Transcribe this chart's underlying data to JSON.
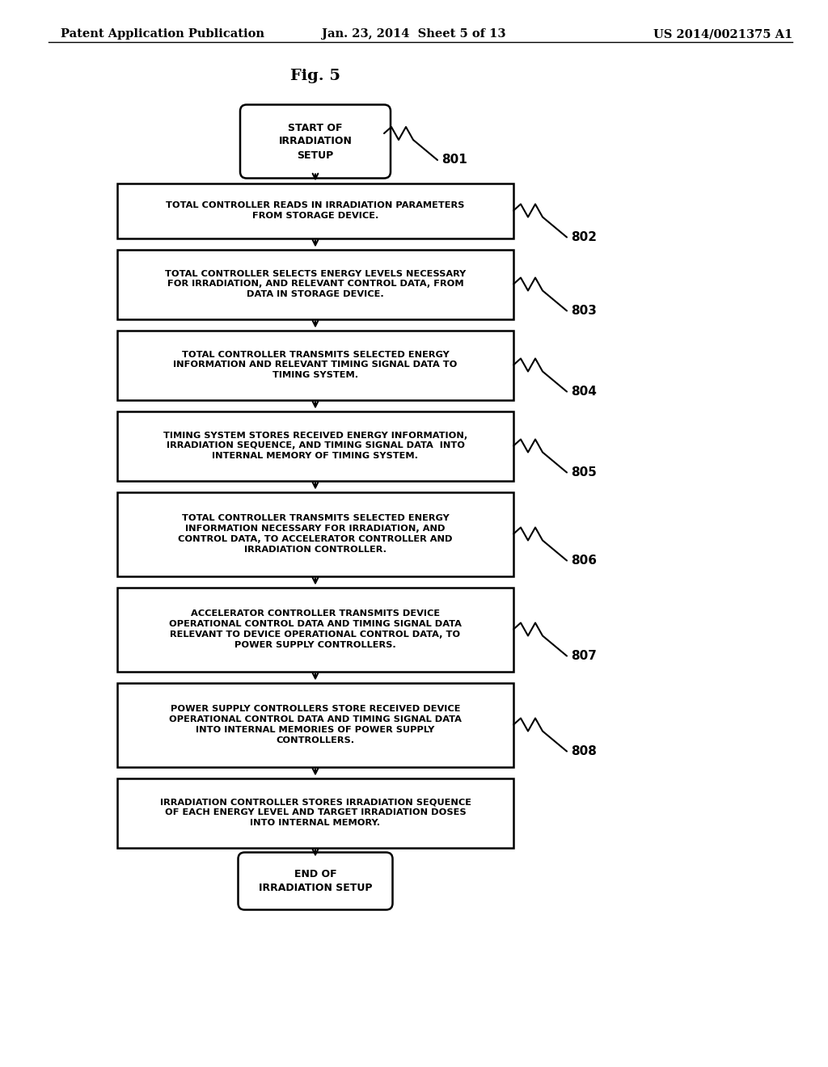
{
  "header_left": "Patent Application Publication",
  "header_center": "Jan. 23, 2014  Sheet 5 of 13",
  "header_right": "US 2014/0021375 A1",
  "fig_label": "Fig. 5",
  "background_color": "#ffffff",
  "start_text": "START OF\nIRRADIATION\nSETUP",
  "end_text": "END OF\nIRRADIATION SETUP",
  "boxes": [
    {
      "text": "TOTAL CONTROLLER READS IN IRRADIATION PARAMETERS\nFROM STORAGE DEVICE.",
      "label": "802",
      "lines": 2
    },
    {
      "text": "TOTAL CONTROLLER SELECTS ENERGY LEVELS NECESSARY\nFOR IRRADIATION, AND RELEVANT CONTROL DATA, FROM\nDATA IN STORAGE DEVICE.",
      "label": "803",
      "lines": 3
    },
    {
      "text": "TOTAL CONTROLLER TRANSMITS SELECTED ENERGY\nINFORMATION AND RELEVANT TIMING SIGNAL DATA TO\nTIMING SYSTEM.",
      "label": "804",
      "lines": 3
    },
    {
      "text": "TIMING SYSTEM STORES RECEIVED ENERGY INFORMATION,\nIRRADIATION SEQUENCE, AND TIMING SIGNAL DATA  INTO\nINTERNAL MEMORY OF TIMING SYSTEM.",
      "label": "805",
      "lines": 3
    },
    {
      "text": "TOTAL CONTROLLER TRANSMITS SELECTED ENERGY\nINFORMATION NECESSARY FOR IRRADIATION, AND\nCONTROL DATA, TO ACCELERATOR CONTROLLER AND\nIRRADIATION CONTROLLER.",
      "label": "806",
      "lines": 4
    },
    {
      "text": "ACCELERATOR CONTROLLER TRANSMITS DEVICE\nOPERATIONAL CONTROL DATA AND TIMING SIGNAL DATA\nRELEVANT TO DEVICE OPERATIONAL CONTROL DATA, TO\nPOWER SUPPLY CONTROLLERS.",
      "label": "807",
      "lines": 4
    },
    {
      "text": "POWER SUPPLY CONTROLLERS STORE RECEIVED DEVICE\nOPERATIONAL CONTROL DATA AND TIMING SIGNAL DATA\nINTO INTERNAL MEMORIES OF POWER SUPPLY\nCONTROLLERS.",
      "label": "808",
      "lines": 4
    },
    {
      "text": "IRRADIATION CONTROLLER STORES IRRADIATION SEQUENCE\nOF EACH ENERGY LEVEL AND TARGET IRRADIATION DOSES\nINTO INTERNAL MEMORY.",
      "label": null,
      "lines": 3
    }
  ]
}
